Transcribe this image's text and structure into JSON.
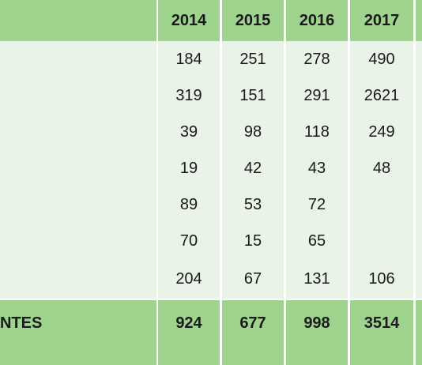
{
  "table": {
    "header": {
      "label": "",
      "years": [
        "2014",
        "2015",
        "2016",
        "2017",
        ""
      ]
    },
    "rows": [
      {
        "label": "",
        "values": [
          "184",
          "251",
          "278",
          "490",
          ""
        ]
      },
      {
        "label": "",
        "values": [
          "319",
          "151",
          "291",
          "2621",
          ""
        ]
      },
      {
        "label": "",
        "values": [
          "39",
          "98",
          "118",
          "249",
          ""
        ]
      },
      {
        "label": "",
        "values": [
          "19",
          "42",
          "43",
          "48",
          ""
        ]
      },
      {
        "label": "",
        "values": [
          "89",
          "53",
          "72",
          "",
          ""
        ]
      },
      {
        "label": "",
        "values": [
          "70",
          "15",
          "65",
          "",
          ""
        ]
      },
      {
        "label": "",
        "values": [
          "204",
          "67",
          "131",
          "106",
          ""
        ]
      }
    ],
    "total": {
      "label": "NTES",
      "values": [
        "924",
        "677",
        "998",
        "3514",
        ""
      ]
    }
  },
  "colors": {
    "header_bg": "#9fd48f",
    "row_bg": "#eaf3e7",
    "grid": "#ffffff"
  }
}
